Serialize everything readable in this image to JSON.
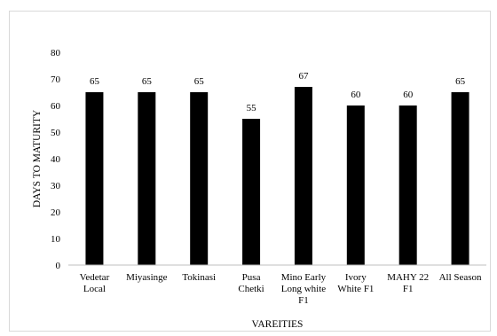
{
  "chart_data": {
    "type": "bar",
    "title": "",
    "xlabel": "VAREITIES",
    "ylabel": "DAYS TO MATURITY",
    "ylim": [
      0,
      80
    ],
    "yticks": [
      0,
      10,
      20,
      30,
      40,
      50,
      60,
      70,
      80
    ],
    "grid": false,
    "legend": "none",
    "bar_color": "#000000",
    "categories": [
      [
        "Vedetar",
        "Local"
      ],
      [
        "Miyasinge"
      ],
      [
        "Tokinasi"
      ],
      [
        "Pusa",
        "Chetki"
      ],
      [
        "Mino Early",
        "Long white",
        "F1"
      ],
      [
        "Ivory",
        "White F1"
      ],
      [
        "MAHY 22",
        "F1"
      ],
      [
        "All Season"
      ]
    ],
    "values": [
      65,
      65,
      65,
      55,
      67,
      60,
      60,
      65
    ]
  }
}
